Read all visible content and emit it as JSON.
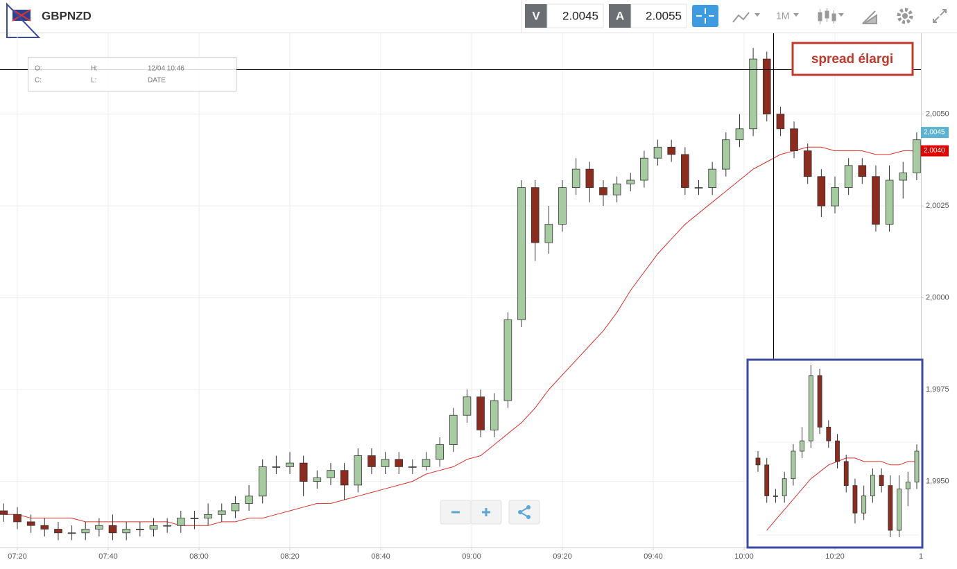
{
  "toolbar": {
    "symbol": "GBPNZD",
    "bid_label": "V",
    "bid": 2.0045,
    "ask_label": "A",
    "ask": 2.0055,
    "timeframe": "1M"
  },
  "info_box": {
    "open_label": "O:",
    "high_label": "H:",
    "time": "12/04 10:46",
    "close_label": "C:",
    "low_label": "L:",
    "date_label": "DATE"
  },
  "annotation": "spread élargi",
  "chart_data": {
    "type": "candlestick",
    "up_color": "#a6cba0",
    "down_color": "#8c2b1e",
    "x": [
      "07:17",
      "07:20",
      "07:23",
      "07:26",
      "07:29",
      "07:32",
      "07:35",
      "07:38",
      "07:41",
      "07:44",
      "07:47",
      "07:50",
      "07:53",
      "07:56",
      "07:59",
      "08:02",
      "08:05",
      "08:08",
      "08:11",
      "08:14",
      "08:17",
      "08:20",
      "08:23",
      "08:26",
      "08:29",
      "08:32",
      "08:35",
      "08:38",
      "08:41",
      "08:44",
      "08:47",
      "08:50",
      "08:53",
      "08:56",
      "08:59",
      "09:02",
      "09:05",
      "09:08",
      "09:11",
      "09:14",
      "09:17",
      "09:20",
      "09:23",
      "09:26",
      "09:29",
      "09:32",
      "09:35",
      "09:38",
      "09:41",
      "09:44",
      "09:47",
      "09:50",
      "09:53",
      "09:56",
      "09:59",
      "10:02",
      "10:05",
      "10:08",
      "10:11",
      "10:14",
      "10:17",
      "10:20",
      "10:23",
      "10:26",
      "10:29",
      "10:32",
      "10:35",
      "10:38"
    ],
    "open": [
      1.9942,
      1.9941,
      1.9939,
      1.9938,
      1.9937,
      1.9936,
      1.9936,
      1.9937,
      1.9938,
      1.9936,
      1.9937,
      1.9937,
      1.9938,
      1.9938,
      1.994,
      1.994,
      1.9941,
      1.9942,
      1.9944,
      1.9946,
      1.9954,
      1.9954,
      1.9955,
      1.995,
      1.9951,
      1.9953,
      1.9949,
      1.9957,
      1.9954,
      1.9956,
      1.9954,
      1.9954,
      1.9956,
      1.996,
      1.9968,
      1.9973,
      1.9964,
      1.9972,
      1.9994,
      2.003,
      2.0015,
      2.002,
      2.003,
      2.0035,
      2.003,
      2.0028,
      2.0031,
      2.0032,
      2.0038,
      2.0041,
      2.0039,
      2.003,
      2.003,
      2.0035,
      2.0043,
      2.0046,
      2.0065,
      2.005,
      2.0046,
      2.004,
      2.0033,
      2.0025,
      2.003,
      2.0036,
      2.0033,
      2.002,
      2.0032,
      2.0034
    ],
    "high": [
      1.9944,
      1.9943,
      1.9941,
      1.994,
      1.9939,
      1.9938,
      1.9939,
      1.994,
      1.9941,
      1.9939,
      1.9939,
      1.994,
      1.994,
      1.9942,
      1.9942,
      1.9944,
      1.9944,
      1.9946,
      1.9949,
      1.9956,
      1.9957,
      1.9958,
      1.9957,
      1.9953,
      1.9955,
      1.9955,
      1.9959,
      1.9959,
      1.9958,
      1.9958,
      1.9956,
      1.9958,
      1.9962,
      1.997,
      1.9975,
      1.9975,
      1.9974,
      1.9996,
      2.0032,
      2.0032,
      2.0025,
      2.0032,
      2.0038,
      2.0037,
      2.0032,
      2.0033,
      2.0034,
      2.004,
      2.0043,
      2.0043,
      2.0041,
      2.0032,
      2.0037,
      2.0045,
      2.005,
      2.0068,
      2.0067,
      2.0052,
      2.0048,
      2.0042,
      2.0035,
      2.0033,
      2.0038,
      2.0038,
      2.0036,
      2.0036,
      2.0037,
      2.0045
    ],
    "low": [
      1.9939,
      1.9937,
      1.9936,
      1.9935,
      1.9934,
      1.9934,
      1.9934,
      1.9935,
      1.9934,
      1.9934,
      1.9935,
      1.9935,
      1.9936,
      1.9936,
      1.9937,
      1.9938,
      1.9939,
      1.994,
      1.9942,
      1.9944,
      1.9952,
      1.9952,
      1.9946,
      1.9948,
      1.9949,
      1.9945,
      1.9947,
      1.9952,
      1.9952,
      1.9952,
      1.9952,
      1.9953,
      1.9954,
      1.9958,
      1.9966,
      1.9962,
      1.9962,
      1.997,
      1.9992,
      2.001,
      2.0012,
      2.0018,
      2.0028,
      2.0026,
      2.0025,
      2.0026,
      2.0029,
      2.003,
      2.0036,
      2.0037,
      2.0028,
      2.0028,
      2.0028,
      2.0033,
      2.0041,
      2.0044,
      2.0048,
      2.0044,
      2.0038,
      2.0031,
      2.0022,
      2.0023,
      2.0028,
      2.0031,
      2.0018,
      2.0018,
      2.0027,
      2.0032
    ],
    "close": [
      1.9941,
      1.9939,
      1.9938,
      1.9937,
      1.9936,
      1.9936,
      1.9937,
      1.9938,
      1.9936,
      1.9937,
      1.9937,
      1.9938,
      1.9938,
      1.994,
      1.994,
      1.9941,
      1.9942,
      1.9944,
      1.9946,
      1.9954,
      1.9954,
      1.9955,
      1.995,
      1.9951,
      1.9953,
      1.9949,
      1.9957,
      1.9954,
      1.9956,
      1.9954,
      1.9954,
      1.9956,
      1.996,
      1.9968,
      1.9973,
      1.9964,
      1.9972,
      1.9994,
      2.003,
      2.0015,
      2.002,
      2.003,
      2.0035,
      2.003,
      2.0028,
      2.0031,
      2.0032,
      2.0038,
      2.0041,
      2.0039,
      2.003,
      2.003,
      2.0035,
      2.0043,
      2.0046,
      2.0065,
      2.005,
      2.0046,
      2.004,
      2.0033,
      2.0025,
      2.003,
      2.0036,
      2.0033,
      2.002,
      2.0032,
      2.0034,
      2.0043
    ],
    "moving_average": {
      "color": "#d9302b",
      "values": [
        1.9941,
        1.9941,
        1.994,
        1.994,
        1.994,
        1.994,
        1.9939,
        1.9939,
        1.9939,
        1.9939,
        1.9939,
        1.9939,
        1.9939,
        1.9938,
        1.9938,
        1.9938,
        1.9939,
        1.9939,
        1.994,
        1.994,
        1.9941,
        1.9942,
        1.9943,
        1.9944,
        1.9944,
        1.9945,
        1.9946,
        1.9947,
        1.9948,
        1.9949,
        1.995,
        1.9952,
        1.9953,
        1.9954,
        1.9956,
        1.9957,
        1.996,
        1.9963,
        1.9966,
        1.997,
        1.9975,
        1.9979,
        1.9983,
        1.9987,
        1.9991,
        1.9996,
        2.0002,
        2.0007,
        2.0012,
        2.0016,
        2.002,
        2.0023,
        2.0026,
        2.0029,
        2.0032,
        2.0035,
        2.0037,
        2.0039,
        2.004,
        2.0041,
        2.0041,
        2.004,
        2.004,
        2.004,
        2.0039,
        2.0039,
        2.004,
        2.004
      ]
    },
    "xlim": [
      "07:17",
      "10:41"
    ],
    "xticks": [
      "07:20",
      "07:40",
      "08:00",
      "08:20",
      "08:40",
      "09:00",
      "09:20",
      "09:40",
      "10:00",
      "10:20",
      {
        "value": "10:40",
        "label": "1"
      }
    ],
    "ylim": [
      1.9932,
      2.0072
    ],
    "yticks": [
      {
        "value": 1.995,
        "label": "1,9950"
      },
      {
        "value": 1.9975,
        "label": "1,9975"
      },
      {
        "value": 2,
        "label": "2,0000"
      },
      {
        "value": 2.0025,
        "label": "2,0025"
      },
      {
        "value": 2.005,
        "label": "2,0050"
      }
    ],
    "price_tags": [
      {
        "value": 2.0045,
        "label": "2,0045",
        "color": "#5bb3d0"
      },
      {
        "value": 2.004,
        "label": "2,0040",
        "color": "#e00000"
      }
    ],
    "grid": true
  }
}
